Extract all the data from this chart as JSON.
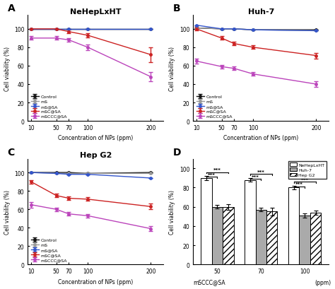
{
  "x": [
    10,
    50,
    70,
    100,
    200
  ],
  "panel_A": {
    "title": "NeHepLxHT",
    "Control": [
      100,
      100,
      100,
      100,
      100
    ],
    "mS": [
      100,
      100,
      100,
      100,
      100
    ],
    "mS@SA": [
      100,
      100,
      100,
      100,
      100
    ],
    "mSC@SA": [
      100,
      100,
      97,
      93,
      72
    ],
    "mSCCC@SA": [
      90,
      90,
      88,
      80,
      48
    ],
    "Control_err": [
      0,
      0,
      0,
      0,
      0
    ],
    "mS_err": [
      0,
      0,
      0,
      0,
      0
    ],
    "mS@SA_err": [
      0,
      0,
      0,
      0,
      0
    ],
    "mSC@SA_err": [
      0,
      0,
      2,
      2,
      8
    ],
    "mSCCC@SA_err": [
      2,
      2,
      2,
      3,
      5
    ]
  },
  "panel_B": {
    "title": "Huh-7",
    "Control": [
      101,
      100,
      100,
      99,
      99
    ],
    "mS": [
      101,
      100,
      100,
      99,
      98
    ],
    "mS@SA": [
      104,
      100,
      100,
      99,
      98
    ],
    "mSC@SA": [
      100,
      90,
      84,
      80,
      71
    ],
    "mSCCC@SA": [
      65,
      59,
      57,
      51,
      40
    ],
    "Control_err": [
      0,
      0,
      0,
      0,
      0
    ],
    "mS_err": [
      0,
      0,
      0,
      0,
      0
    ],
    "mS@SA_err": [
      0,
      0,
      0,
      0,
      0
    ],
    "mSC@SA_err": [
      2,
      2,
      2,
      2,
      3
    ],
    "mSCCC@SA_err": [
      3,
      2,
      2,
      2,
      3
    ]
  },
  "panel_C": {
    "title": "Hep G2",
    "Control": [
      100,
      100,
      100,
      99,
      100
    ],
    "mS": [
      100,
      99,
      99,
      99,
      99
    ],
    "mS@SA": [
      100,
      99,
      98,
      98,
      94
    ],
    "mSC@SA": [
      90,
      75,
      72,
      71,
      63
    ],
    "mSCCC@SA": [
      65,
      60,
      55,
      53,
      39
    ],
    "Control_err": [
      0,
      0,
      0,
      0,
      0
    ],
    "mS_err": [
      0,
      0,
      0,
      0,
      0
    ],
    "mS@SA_err": [
      0,
      0,
      0,
      0,
      0
    ],
    "mSC@SA_err": [
      2,
      2,
      2,
      2,
      3
    ],
    "mSCCC@SA_err": [
      3,
      2,
      2,
      2,
      3
    ]
  },
  "panel_D": {
    "NeHepLxHT": [
      90,
      88,
      80
    ],
    "Huh7": [
      60,
      57,
      51
    ],
    "HepG2": [
      60,
      55,
      54
    ],
    "NeHepLxHT_err": [
      2,
      2,
      2
    ],
    "Huh7_err": [
      2,
      2,
      2
    ],
    "HepG2_err": [
      3,
      4,
      2
    ],
    "group_labels": [
      "50",
      "70",
      "100"
    ]
  },
  "colors": {
    "Control": "#111111",
    "mS": "#999999",
    "mS@SA": "#3355cc",
    "mSC@SA": "#cc2222",
    "mSCCC@SA": "#bb44bb"
  }
}
